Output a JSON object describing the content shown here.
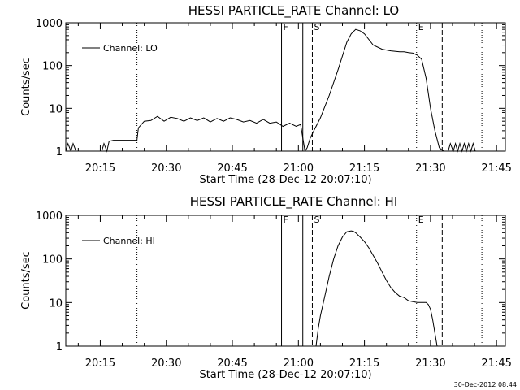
{
  "chart_data": [
    {
      "type": "line",
      "title": "HESSI PARTICLE_RATE Channel: LO",
      "xlabel": "Start Time (28-Dec-12 20:07:10)",
      "ylabel": "Counts/sec",
      "yscale": "log",
      "ylim": [
        1,
        1000
      ],
      "xlim": [
        "20:07:10",
        "21:47:00"
      ],
      "x_ticks": [
        "20:15",
        "20:30",
        "20:45",
        "21:00",
        "21:15",
        "21:30",
        "21:45"
      ],
      "y_ticks": [
        "1",
        "10",
        "100",
        "1000"
      ],
      "legend": {
        "entries": [
          "Channel: LO"
        ],
        "placement": "top-left"
      },
      "grid": false,
      "markers": [
        {
          "label": "F",
          "time": "20:56:10",
          "style": "solid"
        },
        {
          "label": "",
          "time": "21:01:00",
          "style": "solid"
        },
        {
          "label": "S",
          "time": "21:03:10",
          "style": "dashed"
        },
        {
          "label": "E",
          "time": "21:26:50",
          "style": "dotted"
        },
        {
          "label": "",
          "time": "21:32:40",
          "style": "dashed"
        },
        {
          "label": "",
          "time": "20:23:20",
          "style": "dotted"
        },
        {
          "label": "",
          "time": "21:41:40",
          "style": "dotted"
        }
      ],
      "series": [
        {
          "name": "Channel: LO",
          "x": [
            "20:07:10",
            "20:07:40",
            "20:08:20",
            "20:08:50",
            "20:09:30",
            "20:10:00",
            "20:10:30",
            "20:11:00",
            "20:11:20",
            "20:11:50",
            "20:12:20",
            "20:12:50",
            "20:13:20",
            "20:13:50",
            "20:14:20",
            "20:14:50",
            "20:15:20",
            "20:15:50",
            "20:16:30",
            "20:17:00",
            "20:18:00",
            "20:19:00",
            "20:20:00",
            "20:21:00",
            "20:22:00",
            "20:23:20",
            "20:23:40",
            "20:25:00",
            "20:26:30",
            "20:28:00",
            "20:29:30",
            "20:31:00",
            "20:32:30",
            "20:34:00",
            "20:35:30",
            "20:37:00",
            "20:38:30",
            "20:40:00",
            "20:41:30",
            "20:43:00",
            "20:44:30",
            "20:46:00",
            "20:47:30",
            "20:49:00",
            "20:50:30",
            "20:52:00",
            "20:53:30",
            "20:55:00",
            "20:56:30",
            "20:58:00",
            "20:59:30",
            "21:00:30",
            "21:01:30",
            "21:02:00",
            "21:02:40",
            "21:03:30",
            "21:05:00",
            "21:07:00",
            "21:09:00",
            "21:11:00",
            "21:12:00",
            "21:13:00",
            "21:14:00",
            "21:15:00",
            "21:17:00",
            "21:19:00",
            "21:21:00",
            "21:23:00",
            "21:24:00",
            "21:25:00",
            "21:26:00",
            "21:27:00",
            "21:28:00",
            "21:29:00",
            "21:30:00",
            "21:31:00",
            "21:32:00",
            "21:33:00",
            "21:34:00",
            "21:34:30",
            "21:35:10",
            "21:35:40",
            "21:36:10",
            "21:36:40",
            "21:37:10",
            "21:37:40",
            "21:38:10",
            "21:38:40",
            "21:39:10",
            "21:39:40",
            "21:40:10"
          ],
          "values": [
            1,
            1.5,
            1,
            1.5,
            1,
            1,
            1,
            1,
            1,
            1,
            1,
            1,
            1,
            1,
            1,
            1,
            1,
            1.5,
            1,
            1.7,
            1.8,
            1.8,
            1.8,
            1.8,
            1.8,
            1.8,
            3.5,
            5,
            5.2,
            6.5,
            5,
            6.2,
            5.8,
            5,
            6,
            5.2,
            6,
            4.8,
            5.8,
            5,
            6,
            5.5,
            4.8,
            5.2,
            4.5,
            5.5,
            4.5,
            4.8,
            3.8,
            4.5,
            3.8,
            4.2,
            1,
            1.2,
            2,
            3,
            6,
            20,
            80,
            350,
            550,
            700,
            650,
            550,
            300,
            240,
            220,
            210,
            210,
            200,
            195,
            175,
            140,
            50,
            10,
            3,
            1.2,
            1,
            1,
            1.5,
            1,
            1.5,
            1,
            1.5,
            1,
            1.5,
            1,
            1.5,
            1,
            1.5,
            1
          ]
        }
      ]
    },
    {
      "type": "line",
      "title": "HESSI PARTICLE_RATE Channel: HI",
      "xlabel": "Start Time (28-Dec-12 20:07:10)",
      "ylabel": "Counts/sec",
      "yscale": "log",
      "ylim": [
        1,
        1000
      ],
      "xlim": [
        "20:07:10",
        "21:47:00"
      ],
      "x_ticks": [
        "20:15",
        "20:30",
        "20:45",
        "21:00",
        "21:15",
        "21:30",
        "21:45"
      ],
      "y_ticks": [
        "1",
        "10",
        "100",
        "1000"
      ],
      "legend": {
        "entries": [
          "Channel: HI"
        ],
        "placement": "top-left"
      },
      "grid": false,
      "markers": [
        {
          "label": "F",
          "time": "20:56:10",
          "style": "solid"
        },
        {
          "label": "",
          "time": "21:01:00",
          "style": "solid"
        },
        {
          "label": "S",
          "time": "21:03:10",
          "style": "dashed"
        },
        {
          "label": "E",
          "time": "21:26:50",
          "style": "dotted"
        },
        {
          "label": "",
          "time": "21:32:40",
          "style": "dashed"
        },
        {
          "label": "",
          "time": "20:23:20",
          "style": "dotted"
        },
        {
          "label": "",
          "time": "21:41:40",
          "style": "dotted"
        }
      ],
      "series": [
        {
          "name": "Channel: HI",
          "x": [
            "21:04:00",
            "21:04:30",
            "21:05:00",
            "21:06:00",
            "21:07:00",
            "21:08:00",
            "21:09:00",
            "21:10:00",
            "21:11:00",
            "21:12:00",
            "21:12:30",
            "21:13:00",
            "21:14:00",
            "21:15:00",
            "21:16:00",
            "21:17:00",
            "21:18:00",
            "21:19:00",
            "21:20:00",
            "21:21:00",
            "21:22:00",
            "21:23:00",
            "21:24:00",
            "21:25:00",
            "21:26:00",
            "21:27:00",
            "21:28:00",
            "21:29:00",
            "21:29:30",
            "21:30:00",
            "21:30:30",
            "21:31:00",
            "21:31:30"
          ],
          "values": [
            1,
            2.5,
            5,
            14,
            40,
            100,
            200,
            320,
            420,
            440,
            430,
            400,
            320,
            250,
            180,
            120,
            80,
            50,
            32,
            22,
            17,
            14,
            13,
            11,
            10.5,
            10,
            10,
            10,
            9,
            7,
            4,
            2,
            1
          ]
        }
      ]
    }
  ],
  "stamp": "30-Dec-2012 08:44"
}
